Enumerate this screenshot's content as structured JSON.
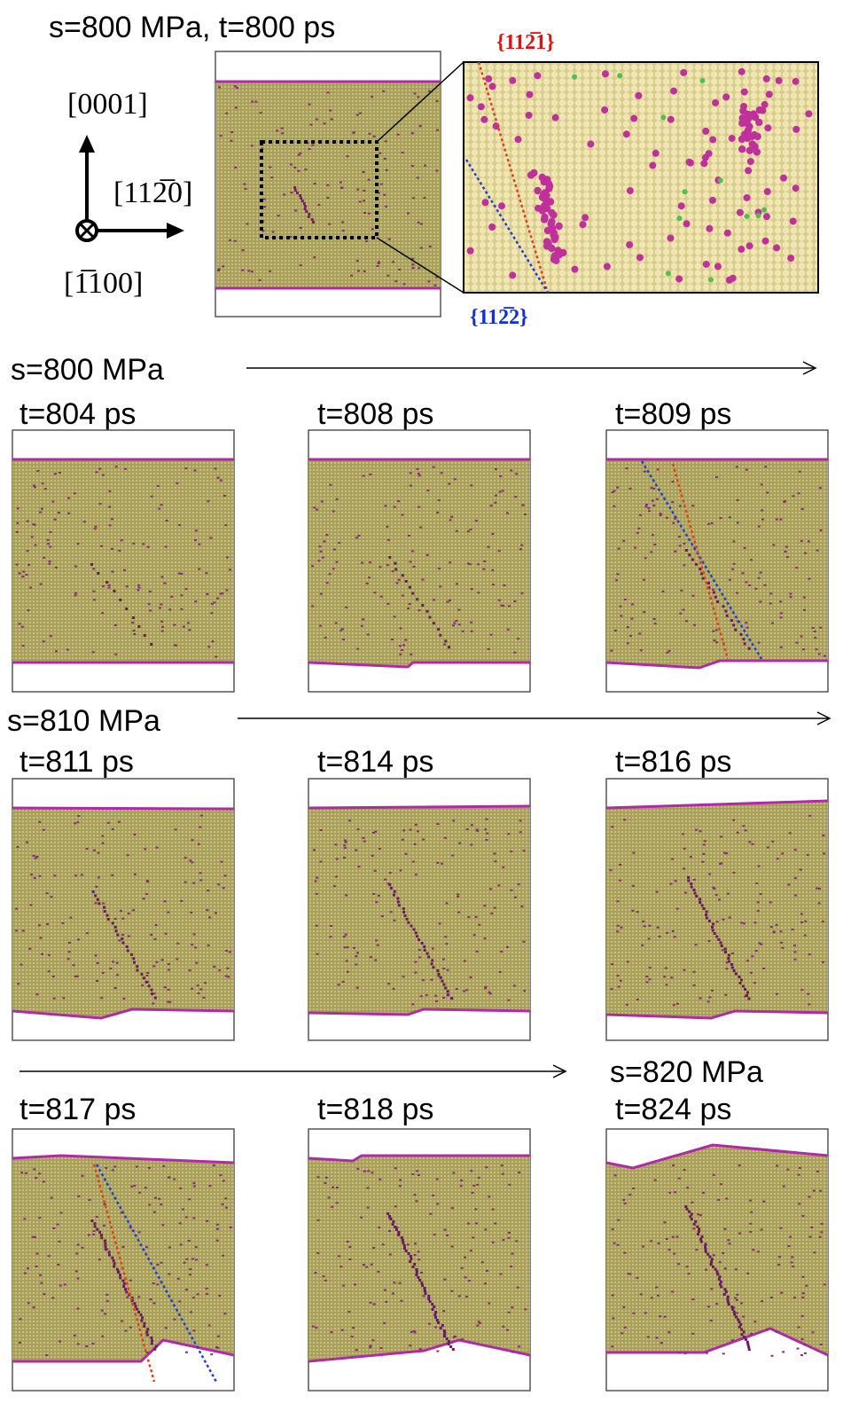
{
  "top": {
    "title": "s=800 MPa, t=800 ps",
    "directions": [
      "[0001]",
      "[112̅0]",
      "[1̅100]"
    ],
    "planes": [
      "{112̅1}",
      "{112̅2}"
    ]
  },
  "stages": [
    "s=800 MPa",
    "s=810 MPa",
    "s=820 MPa"
  ],
  "panels": [
    "t=804 ps",
    "t=808 ps",
    "t=809 ps",
    "t=811 ps",
    "t=814 ps",
    "t=816 ps",
    "t=817 ps",
    "t=818 ps",
    "t=824 ps"
  ]
}
